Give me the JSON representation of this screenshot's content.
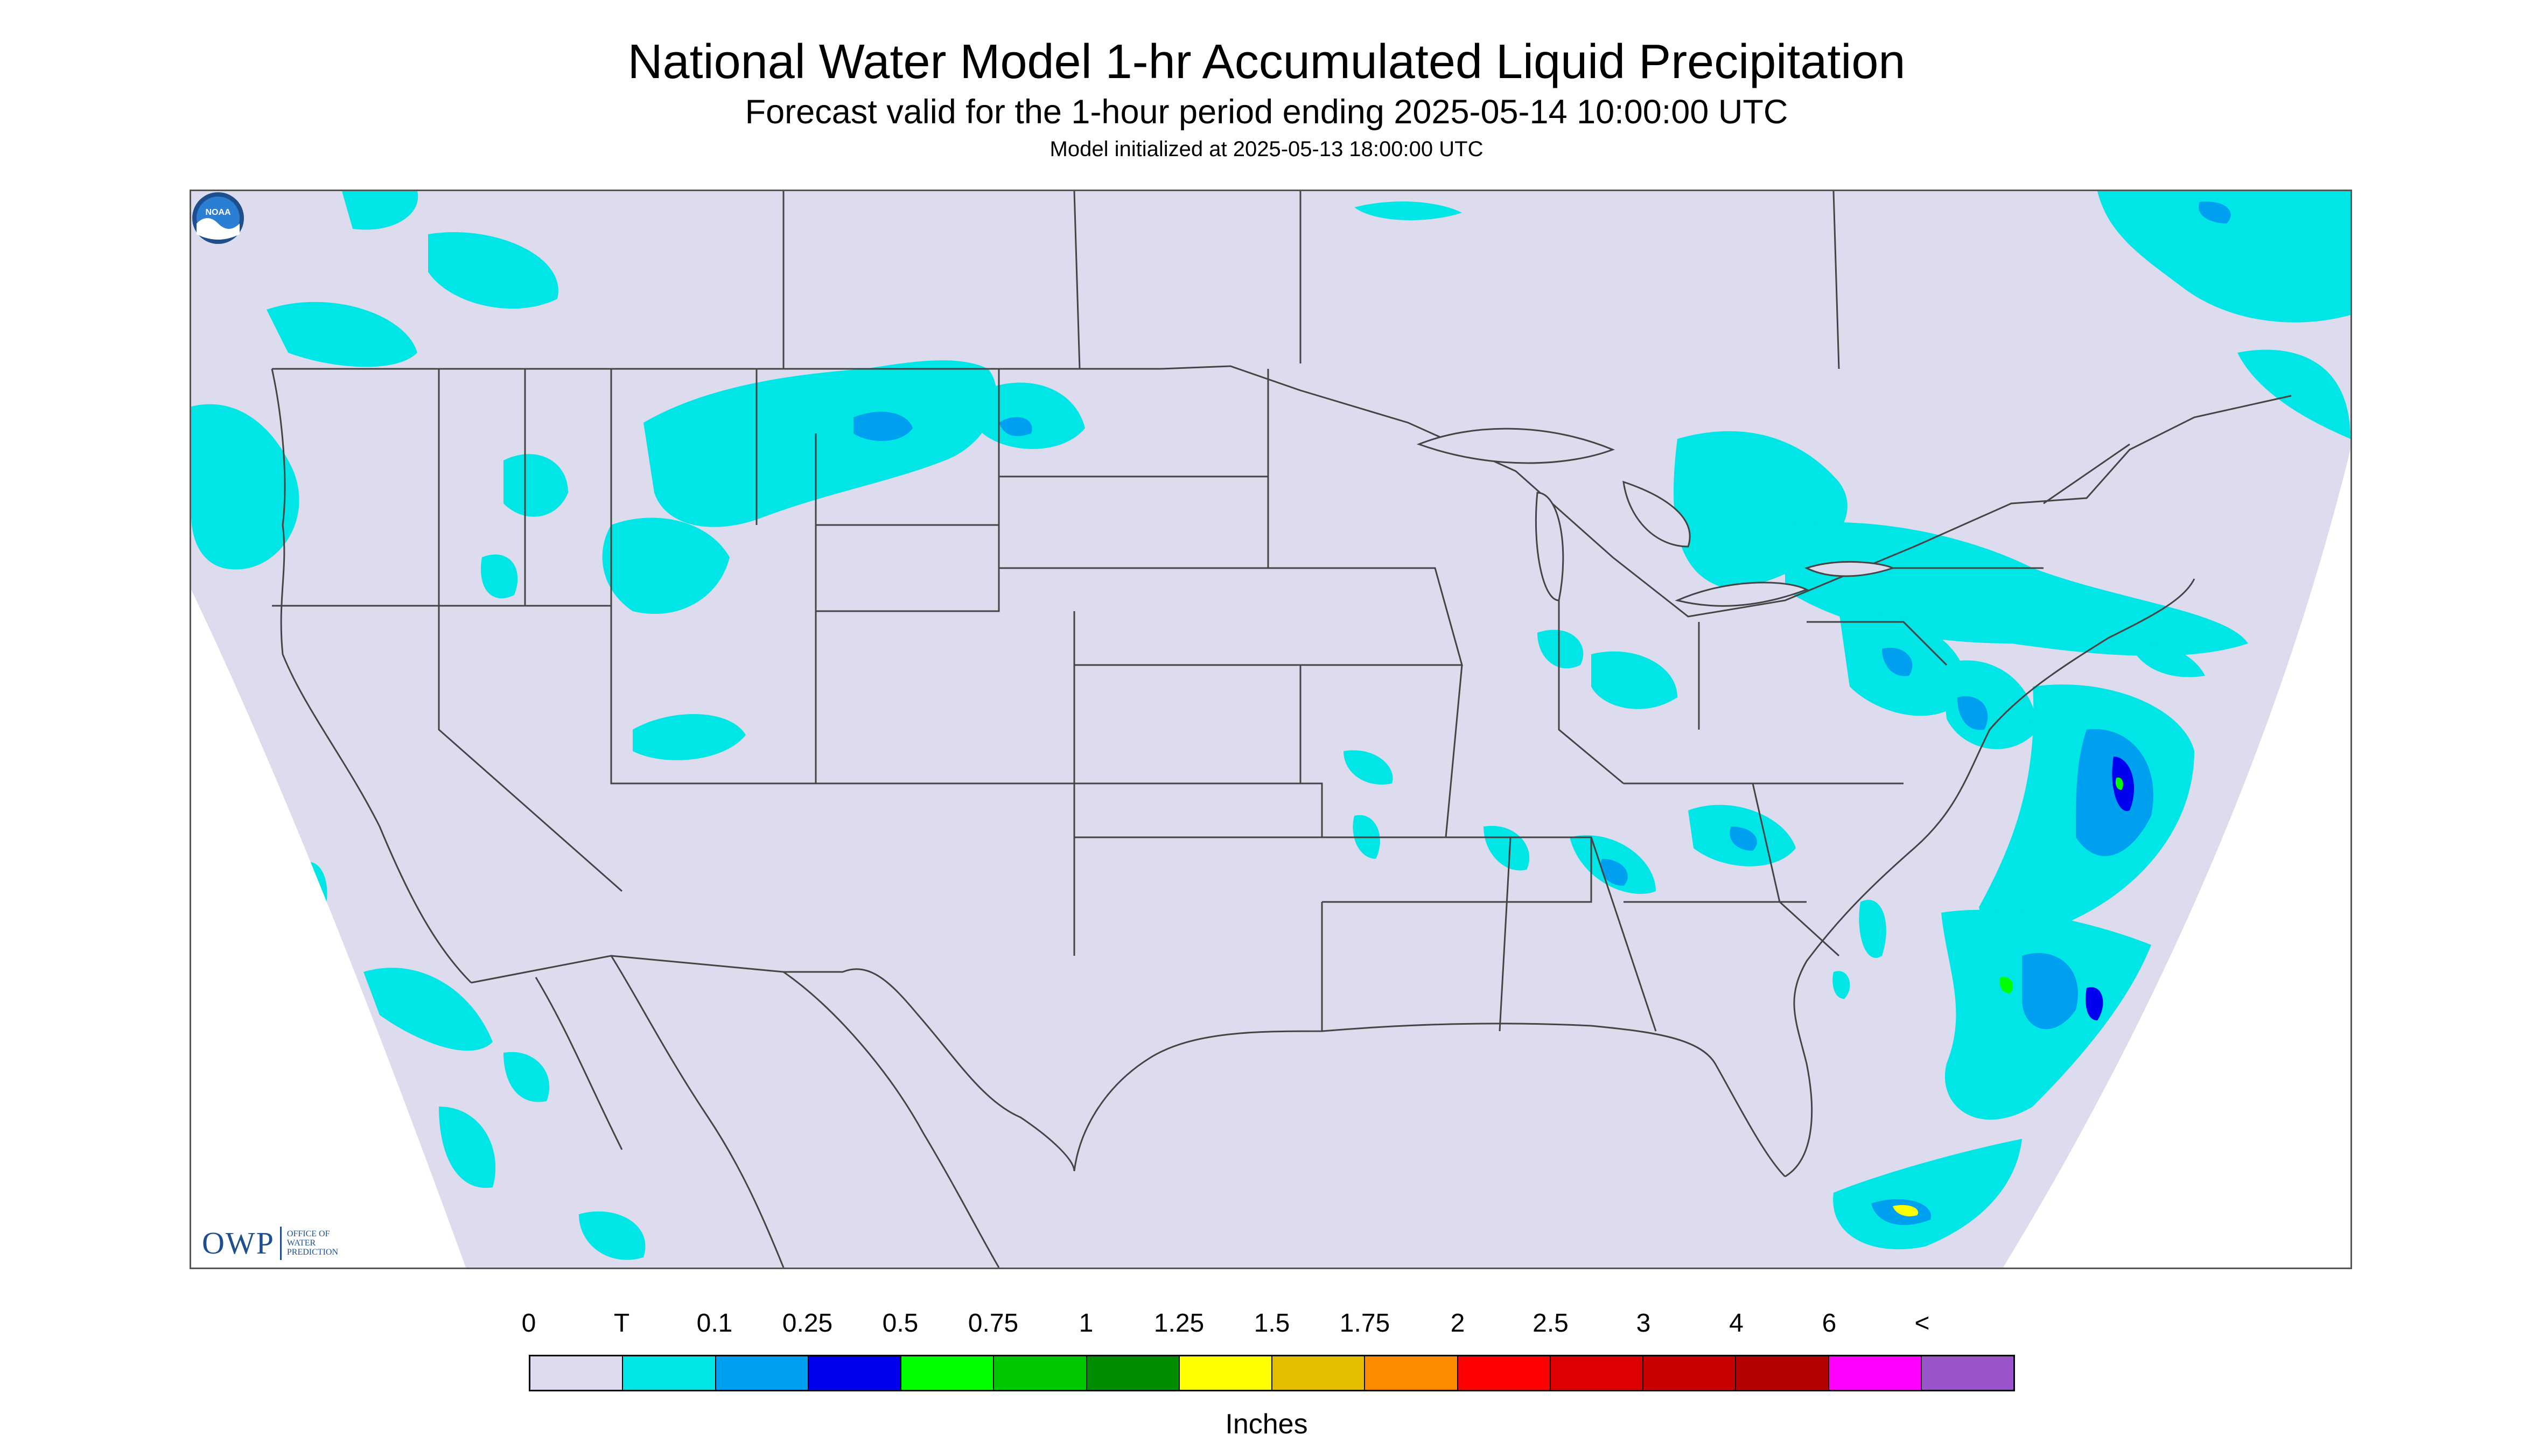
{
  "header": {
    "title": "National Water Model 1-hr Accumulated Liquid Precipitation",
    "subtitle": "Forecast valid for the 1-hour period ending 2025-05-14 10:00:00 UTC",
    "init": "Model initialized at 2025-05-13 18:00:00 UTC"
  },
  "logos": {
    "owp_letters": "OWP",
    "owp_subtext": "OFFICE OF WATER PREDICTION",
    "noaa_text": "NOAA"
  },
  "legend": {
    "labels": [
      "0",
      "T",
      "0.1",
      "0.25",
      "0.5",
      "0.75",
      "1",
      "1.25",
      "1.5",
      "1.75",
      "2",
      "2.5",
      "3",
      "4",
      "6",
      "<"
    ],
    "colors": [
      "#dcdcee",
      "#00e5e5",
      "#00a0f0",
      "#0000f0",
      "#00ff00",
      "#00c800",
      "#008c00",
      "#ffff00",
      "#e6be00",
      "#ff8c00",
      "#ff0000",
      "#dc0000",
      "#c80000",
      "#b40000",
      "#ff00ff",
      "#9955c9"
    ],
    "units": "Inches"
  },
  "map": {
    "domain_color": "#dcdcee",
    "outside_color": "#ffffff",
    "border_color": "#444444",
    "region": "Contiguous United States"
  }
}
